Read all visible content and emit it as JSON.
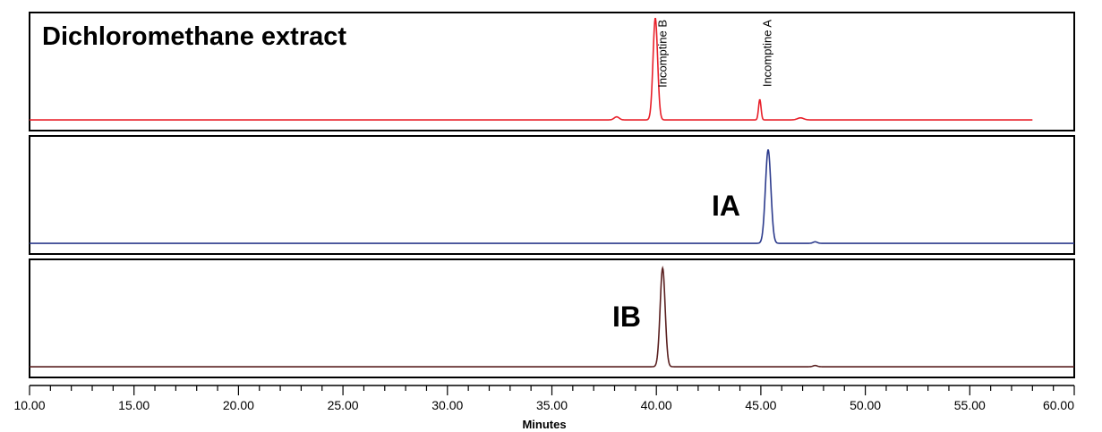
{
  "chart_data": {
    "type": "line",
    "xlabel": "Minutes",
    "xlim": [
      10,
      60
    ],
    "x_ticks": [
      "10.00",
      "15.00",
      "20.00",
      "25.00",
      "30.00",
      "35.00",
      "40.00",
      "45.00",
      "50.00",
      "55.00",
      "60.00"
    ],
    "grid": false,
    "panels": [
      {
        "label": "Dichloromethane extract",
        "color": "#e8202a",
        "x_end": 58.0,
        "baseline": 0.02,
        "peaks": [
          {
            "rt": 38.1,
            "height": 0.03,
            "width": 0.12
          },
          {
            "rt": 39.95,
            "height": 1.0,
            "width": 0.11
          },
          {
            "rt": 44.95,
            "height": 0.2,
            "width": 0.06
          },
          {
            "rt": 46.9,
            "height": 0.02,
            "width": 0.15
          }
        ],
        "annotations": [
          {
            "text": "Incomptine B",
            "rt": 40.3
          },
          {
            "text": "Incomptine A",
            "rt": 45.3
          }
        ]
      },
      {
        "label": "IA",
        "color": "#2b3a8c",
        "x_end": 60.0,
        "baseline": 0.02,
        "peaks": [
          {
            "rt": 45.35,
            "height": 0.92,
            "width": 0.13
          },
          {
            "rt": 47.6,
            "height": 0.015,
            "width": 0.1
          }
        ],
        "annotations": []
      },
      {
        "label": "IB",
        "color": "#5a2020",
        "x_end": 60.0,
        "baseline": 0.01,
        "peaks": [
          {
            "rt": 40.3,
            "height": 0.97,
            "width": 0.12
          },
          {
            "rt": 47.6,
            "height": 0.012,
            "width": 0.1
          }
        ],
        "annotations": []
      }
    ]
  }
}
